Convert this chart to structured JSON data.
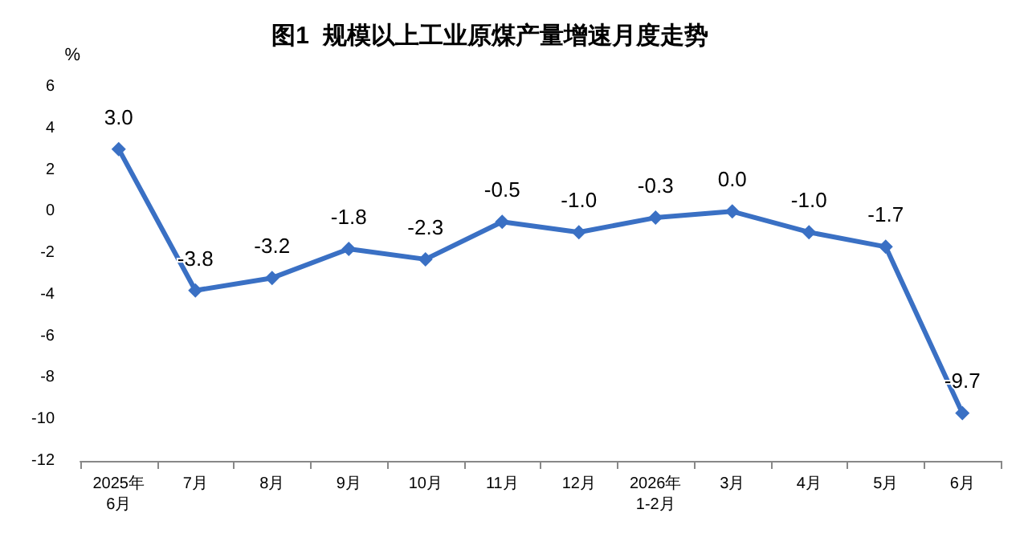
{
  "chart_data": {
    "type": "line",
    "title": "图1  规模以上工业原煤产量增速月度走势",
    "ylabel": "%",
    "categories": [
      "2025年\n6月",
      "7月",
      "8月",
      "9月",
      "10月",
      "11月",
      "12月",
      "2026年\n1-2月",
      "3月",
      "4月",
      "5月",
      "6月"
    ],
    "series": [
      {
        "color": "#3a70c4",
        "values": [
          3.0,
          -3.8,
          -3.2,
          -1.8,
          -2.3,
          -0.5,
          -1.0,
          -0.3,
          0.0,
          -1.0,
          -1.7,
          -9.7
        ],
        "value_labels": [
          "3.0",
          "-3.8",
          "-3.2",
          "-1.8",
          "-2.3",
          "-0.5",
          "-1.0",
          "-0.3",
          "0.0",
          "-1.0",
          "-1.7",
          "-9.7"
        ]
      }
    ],
    "ylim": [
      -12,
      6
    ],
    "yticks": [
      -12,
      -10,
      -8,
      -6,
      -4,
      -2,
      0,
      2,
      4,
      6
    ],
    "grid": false,
    "marker": "diamond",
    "line_style": "solid"
  }
}
